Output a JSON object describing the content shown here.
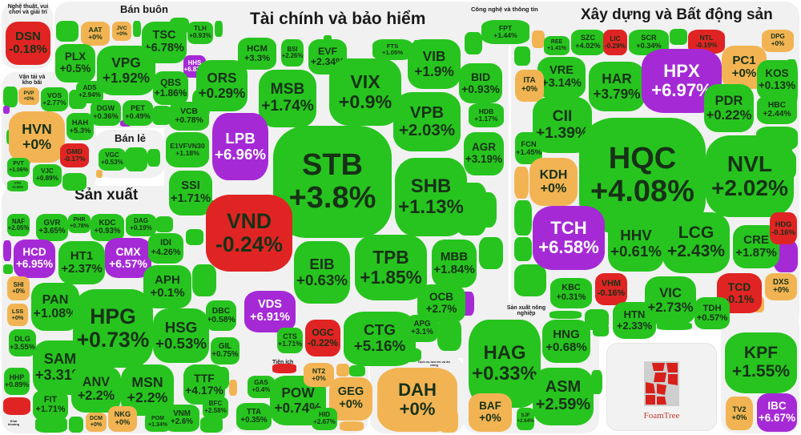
{
  "colors": {
    "up": "#27c41f",
    "ceiling": "#a52ad6",
    "down": "#e02424",
    "ref": "#f2b453",
    "text_dark": "#173117",
    "text_light": "#ffffff"
  },
  "groups": {
    "arts": "Nghệ thuật, vui chơi và giải trí",
    "wholesale": "Bán buôn",
    "transport": "Vận tải và kho bãi",
    "retail": "Bán lẻ",
    "manufacturing": "Sản xuất",
    "finance": "Tài chính và bảo hiểm",
    "tech": "Công nghệ và thông tin",
    "realestate": "Xây dựng và Bất động sản",
    "utilities": "Tiện ích",
    "accommodation": "Dịch vụ lưu trú và ăn uống",
    "agriculture": "Sản xuất nông nghiệp",
    "mining": "Khai khoáng"
  },
  "logo": {
    "text": "FoamTree"
  },
  "cells": [
    {
      "ticker": "DSN",
      "change": "-0.18%",
      "status": "down"
    },
    {
      "ticker": "AAT",
      "change": "+0%",
      "status": "ref"
    },
    {
      "ticker": "JVC",
      "change": "+0%",
      "status": "ref"
    },
    {
      "ticker": "TSC",
      "change": "+6.78%",
      "status": "up"
    },
    {
      "ticker": "TLH",
      "change": "+0.93%",
      "status": "up"
    },
    {
      "ticker": "PLX",
      "change": "+0.5%",
      "status": "up"
    },
    {
      "ticker": "VPG",
      "change": "+1.92%",
      "status": "up"
    },
    {
      "ticker": "HHS",
      "change": "+6.82%",
      "status": "ceiling"
    },
    {
      "ticker": "QBS",
      "change": "+1.86%",
      "status": "up"
    },
    {
      "ticker": "ADS",
      "change": "+2.94%",
      "status": "up"
    },
    {
      "ticker": "DGW",
      "change": "+0.36%",
      "status": "up"
    },
    {
      "ticker": "PET",
      "change": "+0.49%",
      "status": "up"
    },
    {
      "ticker": "PVP",
      "change": "+0%",
      "status": "ref"
    },
    {
      "ticker": "VOS",
      "change": "+2.77%",
      "status": "up"
    },
    {
      "ticker": "HVN",
      "change": "+0%",
      "status": "ref"
    },
    {
      "ticker": "HAH",
      "change": "+5.3%",
      "status": "up"
    },
    {
      "ticker": "GMD",
      "change": "-0.17%",
      "status": "down"
    },
    {
      "ticker": "PVT",
      "change": "+1.06%",
      "status": "up"
    },
    {
      "ticker": "VJC",
      "change": "+0.89%",
      "status": "up"
    },
    {
      "ticker": "VTO",
      "change": "+0.53%",
      "status": "up"
    },
    {
      "ticker": "VGC",
      "change": "+0.53%",
      "status": "up"
    },
    {
      "ticker": "VCB",
      "change": "+0.78%",
      "status": "up"
    },
    {
      "ticker": "E1VFVN30",
      "change": "+1.18%",
      "status": "up"
    },
    {
      "ticker": "SSI",
      "change": "+1.71%",
      "status": "up"
    },
    {
      "ticker": "ORS",
      "change": "+0.29%",
      "status": "up"
    },
    {
      "ticker": "HCM",
      "change": "+3.3%",
      "status": "up"
    },
    {
      "ticker": "BSI",
      "change": "+2.26%",
      "status": "up"
    },
    {
      "ticker": "EVF",
      "change": "+2.34%",
      "status": "up"
    },
    {
      "ticker": "FTS",
      "change": "+1.05%",
      "status": "up"
    },
    {
      "ticker": "VIB",
      "change": "+1.9%",
      "status": "up"
    },
    {
      "ticker": "MSB",
      "change": "+1.74%",
      "status": "up"
    },
    {
      "ticker": "VIX",
      "change": "+0.9%",
      "status": "up"
    },
    {
      "ticker": "LPB",
      "change": "+6.96%",
      "status": "ceiling"
    },
    {
      "ticker": "STB",
      "change": "+3.8%",
      "status": "up"
    },
    {
      "ticker": "VPB",
      "change": "+2.03%",
      "status": "up"
    },
    {
      "ticker": "BID",
      "change": "+0.93%",
      "status": "up"
    },
    {
      "ticker": "HDB",
      "change": "+1.17%",
      "status": "up"
    },
    {
      "ticker": "AGR",
      "change": "+3.19%",
      "status": "up"
    },
    {
      "ticker": "SHB",
      "change": "+1.13%",
      "status": "up"
    },
    {
      "ticker": "VND",
      "change": "-0.24%",
      "status": "down"
    },
    {
      "ticker": "EIB",
      "change": "+0.63%",
      "status": "up"
    },
    {
      "ticker": "TPB",
      "change": "+1.85%",
      "status": "up"
    },
    {
      "ticker": "MBB",
      "change": "+1.84%",
      "status": "up"
    },
    {
      "ticker": "OCB",
      "change": "+2.7%",
      "status": "up"
    },
    {
      "ticker": "VDS",
      "change": "+6.91%",
      "status": "ceiling"
    },
    {
      "ticker": "OGC",
      "change": "-0.22%",
      "status": "down"
    },
    {
      "ticker": "CTS",
      "change": "+1.71%",
      "status": "up"
    },
    {
      "ticker": "CTG",
      "change": "+5.16%",
      "status": "up"
    },
    {
      "ticker": "APG",
      "change": "+3.1%",
      "status": "up"
    },
    {
      "ticker": "NAF",
      "change": "+2.05%",
      "status": "up"
    },
    {
      "ticker": "GVR",
      "change": "+3.65%",
      "status": "up"
    },
    {
      "ticker": "PHR",
      "change": "+0.78%",
      "status": "up"
    },
    {
      "ticker": "KDC",
      "change": "+0.93%",
      "status": "up"
    },
    {
      "ticker": "DAG",
      "change": "+0.19%",
      "status": "up"
    },
    {
      "ticker": "HCD",
      "change": "+6.95%",
      "status": "ceiling"
    },
    {
      "ticker": "HT1",
      "change": "+2.37%",
      "status": "up"
    },
    {
      "ticker": "CMX",
      "change": "+6.57%",
      "status": "ceiling"
    },
    {
      "ticker": "IDI",
      "change": "+4.26%",
      "status": "up"
    },
    {
      "ticker": "SHI",
      "change": "+0%",
      "status": "ref"
    },
    {
      "ticker": "APH",
      "change": "+0.1%",
      "status": "up"
    },
    {
      "ticker": "PAN",
      "change": "+1.08%",
      "status": "up"
    },
    {
      "ticker": "LSS",
      "change": "+0%",
      "status": "ref"
    },
    {
      "ticker": "HPG",
      "change": "+0.73%",
      "status": "up"
    },
    {
      "ticker": "DBC",
      "change": "+0.58%",
      "status": "up"
    },
    {
      "ticker": "HSG",
      "change": "+0.53%",
      "status": "up"
    },
    {
      "ticker": "DLG",
      "change": "+3.55%",
      "status": "up"
    },
    {
      "ticker": "GIL",
      "change": "+0.75%",
      "status": "up"
    },
    {
      "ticker": "SAM",
      "change": "+3.31%",
      "status": "up"
    },
    {
      "ticker": "TTF",
      "change": "+4.17%",
      "status": "up"
    },
    {
      "ticker": "HHP",
      "change": "+0.89%",
      "status": "up"
    },
    {
      "ticker": "ANV",
      "change": "+2.2%",
      "status": "up"
    },
    {
      "ticker": "MSN",
      "change": "+2.2%",
      "status": "up"
    },
    {
      "ticker": "FIT",
      "change": "+1.71%",
      "status": "up"
    },
    {
      "ticker": "VNM",
      "change": "+2.6%",
      "status": "up"
    },
    {
      "ticker": "NKG",
      "change": "+0%",
      "status": "ref"
    },
    {
      "ticker": "DCM",
      "change": "+0%",
      "status": "ref"
    },
    {
      "ticker": "POM",
      "change": "+1.34%",
      "status": "up"
    },
    {
      "ticker": "BFC",
      "change": "+2.58%",
      "status": "up"
    },
    {
      "ticker": "GAS",
      "change": "+0.4%",
      "status": "up"
    },
    {
      "ticker": "POW",
      "change": "+0.74%",
      "status": "up"
    },
    {
      "ticker": "NT2",
      "change": "+0%",
      "status": "ref"
    },
    {
      "ticker": "GEG",
      "change": "+0%",
      "status": "ref"
    },
    {
      "ticker": "TTA",
      "change": "+0.35%",
      "status": "up"
    },
    {
      "ticker": "HID",
      "change": "+2.67%",
      "status": "up"
    },
    {
      "ticker": "DAH",
      "change": "+0%",
      "status": "ref"
    },
    {
      "ticker": "HAG",
      "change": "+0.33%",
      "status": "up"
    },
    {
      "ticker": "HNG",
      "change": "+0.68%",
      "status": "up"
    },
    {
      "ticker": "ASM",
      "change": "+2.59%",
      "status": "up"
    },
    {
      "ticker": "BAF",
      "change": "+0%",
      "status": "ref"
    },
    {
      "ticker": "SJF",
      "change": "+2.64%",
      "status": "up"
    },
    {
      "ticker": "KPF",
      "change": "+1.55%",
      "status": "up"
    },
    {
      "ticker": "TV2",
      "change": "+0%",
      "status": "ref"
    },
    {
      "ticker": "IBC",
      "change": "+6.67%",
      "status": "ceiling"
    },
    {
      "ticker": "FPT",
      "change": "+1.44%",
      "status": "up"
    },
    {
      "ticker": "SZC",
      "change": "+4.02%",
      "status": "up"
    },
    {
      "ticker": "LIC",
      "change": "-0.29%",
      "status": "down"
    },
    {
      "ticker": "SCR",
      "change": "+0.34%",
      "status": "up"
    },
    {
      "ticker": "NTL",
      "change": "-0.19%",
      "status": "down"
    },
    {
      "ticker": "DPG",
      "change": "+0%",
      "status": "ref"
    },
    {
      "ticker": "PC1",
      "change": "+0%",
      "status": "ref"
    },
    {
      "ticker": "REE",
      "change": "+1.41%",
      "status": "up"
    },
    {
      "ticker": "VRE",
      "change": "+3.14%",
      "status": "up"
    },
    {
      "ticker": "ITA",
      "change": "+0%",
      "status": "ref"
    },
    {
      "ticker": "HAR",
      "change": "+3.79%",
      "status": "up"
    },
    {
      "ticker": "HPX",
      "change": "+6.97%",
      "status": "ceiling"
    },
    {
      "ticker": "KOS",
      "change": "+0.13%",
      "status": "up"
    },
    {
      "ticker": "CII",
      "change": "+1.39%",
      "status": "up"
    },
    {
      "ticker": "PDR",
      "change": "+0.22%",
      "status": "up"
    },
    {
      "ticker": "HBC",
      "change": "+2.44%",
      "status": "up"
    },
    {
      "ticker": "FCN",
      "change": "+1.45%",
      "status": "up"
    },
    {
      "ticker": "HQC",
      "change": "+4.08%",
      "status": "up"
    },
    {
      "ticker": "NVL",
      "change": "+2.02%",
      "status": "up"
    },
    {
      "ticker": "KDH",
      "change": "+0%",
      "status": "ref"
    },
    {
      "ticker": "TCH",
      "change": "+6.58%",
      "status": "ceiling"
    },
    {
      "ticker": "HHV",
      "change": "+0.61%",
      "status": "up"
    },
    {
      "ticker": "LCG",
      "change": "+2.43%",
      "status": "up"
    },
    {
      "ticker": "CRE",
      "change": "+1.87%",
      "status": "up"
    },
    {
      "ticker": "HDG",
      "change": "-0.16%",
      "status": "down"
    },
    {
      "ticker": "DXS",
      "change": "+0%",
      "status": "ref"
    },
    {
      "ticker": "VHM",
      "change": "-0.16%",
      "status": "down"
    },
    {
      "ticker": "KBC",
      "change": "+0.31%",
      "status": "up"
    },
    {
      "ticker": "TCD",
      "change": "-0.1%",
      "status": "down"
    },
    {
      "ticker": "HTN",
      "change": "+2.33%",
      "status": "up"
    },
    {
      "ticker": "VIC",
      "change": "+2.73%",
      "status": "up"
    },
    {
      "ticker": "TDH",
      "change": "+0.57%",
      "status": "up"
    }
  ]
}
